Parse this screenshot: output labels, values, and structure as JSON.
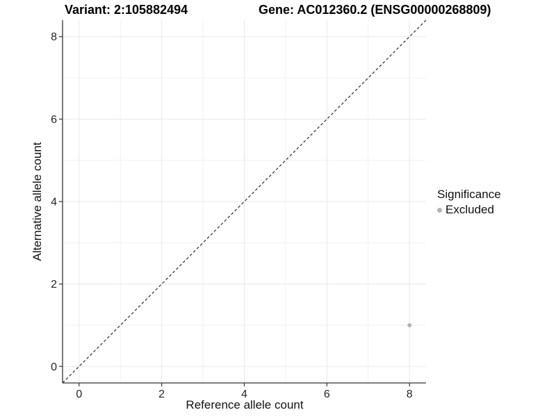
{
  "titles": {
    "variant": "Variant: 2:105882494",
    "gene": "Gene: AC012360.2 (ENSG00000268809)"
  },
  "chart_data": {
    "type": "scatter",
    "title_left": "Variant: 2:105882494",
    "title_right": "Gene: AC012360.2 (ENSG00000268809)",
    "xlabel": "Reference allele count",
    "ylabel": "Alternative allele count",
    "xlim": [
      -0.4,
      8.4
    ],
    "ylim": [
      -0.4,
      8.4
    ],
    "x_ticks": [
      0,
      2,
      4,
      6,
      8
    ],
    "y_ticks": [
      0,
      2,
      4,
      6,
      8
    ],
    "x_minor_ticks": [
      1,
      3,
      5,
      7
    ],
    "y_minor_ticks": [
      1,
      3,
      5,
      7
    ],
    "grid": "major+minor",
    "reference_line": {
      "type": "identity",
      "style": "dashed",
      "from": [
        -0.4,
        -0.4
      ],
      "to": [
        8.4,
        8.4
      ],
      "color": "#1a1a1a"
    },
    "series": [
      {
        "name": "Excluded",
        "color": "#b4b4b4",
        "points": [
          {
            "x": 8,
            "y": 1
          }
        ]
      }
    ],
    "legend": {
      "title": "Significance",
      "position": "right",
      "items": [
        {
          "label": "Excluded",
          "color": "#b4b4b4"
        }
      ]
    },
    "colors": {
      "panel_background": "#ffffff",
      "grid_major": "#e8e8e8",
      "grid_minor": "#f1f1f1",
      "axis_line": "#333333",
      "tick_mark": "#333333",
      "tick_label": "#262626"
    }
  }
}
